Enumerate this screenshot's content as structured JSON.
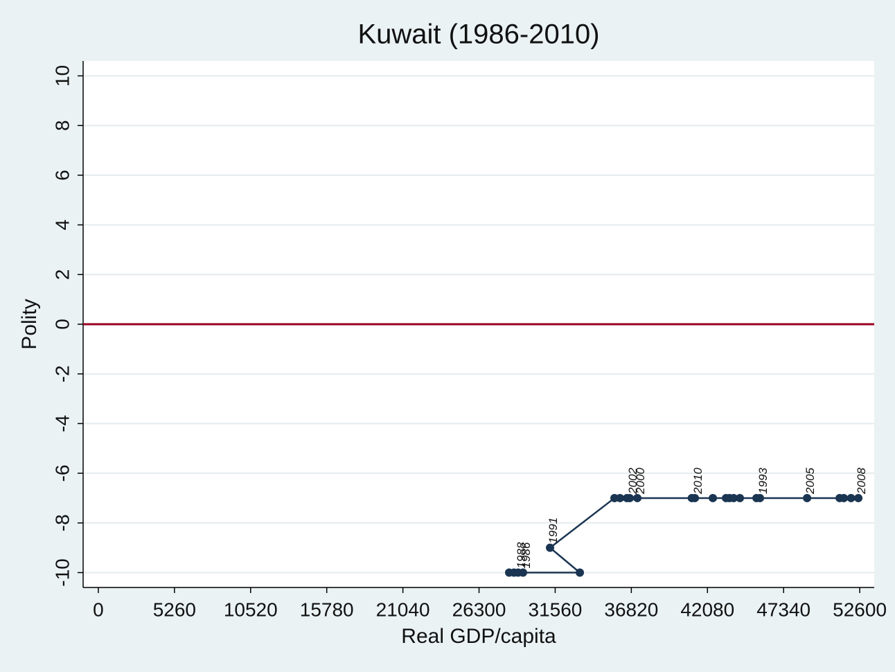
{
  "chart_data": {
    "type": "scatter",
    "connected": true,
    "title": "Kuwait (1986-2010)",
    "xlabel": "Real GDP/capita",
    "ylabel": "Polity",
    "xlim": [
      -1050,
      53600
    ],
    "ylim": [
      -10.6,
      10.6
    ],
    "xticks": [
      0,
      5260,
      10520,
      15780,
      21040,
      26300,
      31560,
      36820,
      42080,
      47340,
      52600
    ],
    "yticks": [
      -10,
      -8,
      -6,
      -4,
      -2,
      0,
      2,
      4,
      6,
      8,
      10
    ],
    "grid": true,
    "hline": 0,
    "hline_color": "#990022",
    "series": [
      {
        "color": "#1a3552",
        "x": [
          29338,
          28716,
          29003,
          28381,
          33263,
          31205,
          35656,
          45707,
          45468,
          44319,
          43889,
          43600,
          43362,
          36039,
          37236,
          36518,
          36710,
          41000,
          51211,
          48962,
          51498,
          52000,
          52503,
          42453,
          41208
        ],
        "values": [
          -10,
          -10,
          -10,
          -10,
          -10,
          -9,
          -7,
          -7,
          -7,
          -7,
          -7,
          -7,
          -7,
          -7,
          -7,
          -7,
          -7,
          -7,
          -7,
          -7,
          -7,
          -7,
          -7,
          -7,
          -7
        ],
        "labels": [
          "1986",
          null,
          "1988",
          null,
          null,
          "1991",
          null,
          "1993",
          null,
          null,
          null,
          null,
          null,
          null,
          "2000",
          null,
          "2002",
          null,
          null,
          "2005",
          null,
          null,
          "2008",
          null,
          "2010"
        ]
      }
    ]
  }
}
